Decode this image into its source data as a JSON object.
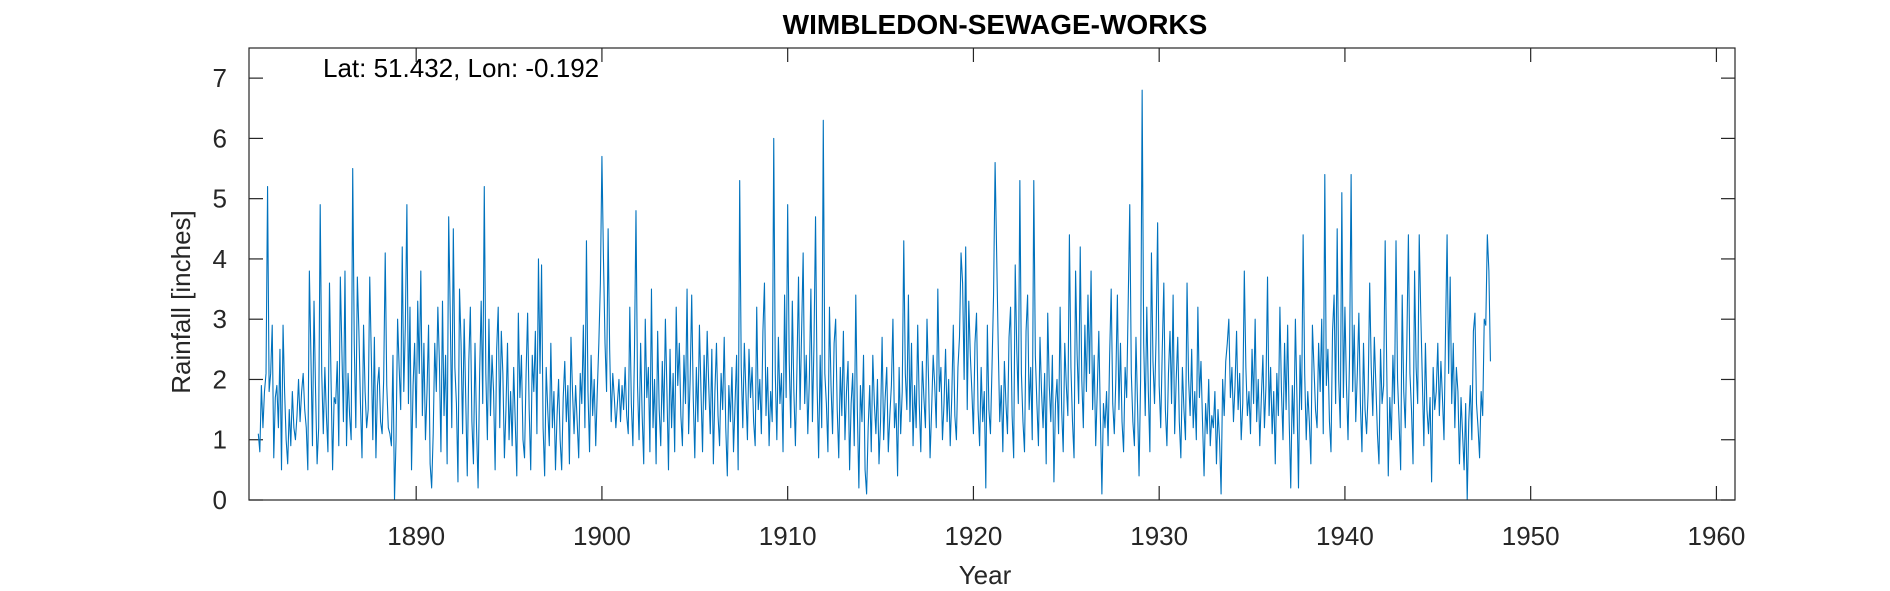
{
  "chart_data": {
    "type": "line",
    "title": "WIMBLEDON-SEWAGE-WORKS",
    "xlabel": "Year",
    "ylabel": "Rainfall [inches]",
    "annotation": "Lat: 51.432, Lon: -0.192",
    "xlim": [
      1881,
      1961
    ],
    "ylim": [
      0,
      7.5
    ],
    "xticks": [
      1890,
      1900,
      1910,
      1920,
      1930,
      1940,
      1950,
      1960
    ],
    "yticks": [
      0,
      1,
      2,
      3,
      4,
      5,
      6,
      7
    ],
    "grid": false,
    "line_color": "#0072BD",
    "series": [
      {
        "start_year": 1881.5,
        "step_years": 0.0833333,
        "values": [
          1.1,
          0.8,
          1.9,
          1.2,
          1.8,
          2.1,
          5.2,
          1.8,
          2.1,
          2.9,
          0.7,
          1.7,
          1.9,
          1.2,
          2.5,
          0.5,
          2.9,
          1.8,
          1.0,
          0.6,
          1.5,
          0.9,
          1.8,
          1.2,
          1.0,
          1.4,
          2.0,
          1.3,
          1.8,
          2.1,
          1.5,
          1.2,
          0.5,
          3.8,
          2.4,
          0.9,
          3.3,
          1.8,
          0.6,
          1.2,
          4.9,
          2.1,
          1.1,
          2.2,
          1.4,
          0.8,
          3.6,
          2.0,
          0.5,
          1.7,
          1.6,
          2.3,
          0.9,
          3.7,
          2.5,
          1.3,
          3.8,
          0.9,
          2.1,
          1.4,
          1.0,
          5.5,
          2.6,
          1.2,
          3.7,
          2.8,
          1.6,
          0.7,
          2.9,
          1.8,
          1.2,
          1.5,
          3.7,
          2.4,
          1.0,
          2.7,
          0.7,
          1.9,
          2.2,
          1.3,
          1.1,
          2.0,
          4.1,
          1.9,
          1.2,
          1.1,
          0.9,
          2.4,
          0.0,
          1.0,
          3.0,
          2.2,
          1.5,
          4.2,
          1.8,
          2.9,
          4.9,
          1.6,
          3.2,
          0.5,
          1.9,
          2.6,
          1.2,
          3.3,
          2.1,
          3.8,
          1.4,
          2.6,
          1.0,
          1.8,
          2.9,
          0.6,
          0.2,
          1.1,
          2.6,
          1.8,
          3.2,
          2.3,
          0.8,
          3.3,
          1.4,
          2.4,
          0.6,
          4.7,
          3.1,
          1.2,
          4.5,
          2.2,
          1.6,
          0.3,
          3.5,
          2.6,
          1.1,
          3.0,
          1.7,
          0.4,
          2.3,
          3.2,
          1.3,
          0.6,
          2.6,
          1.2,
          0.2,
          2.1,
          3.3,
          1.6,
          5.2,
          2.1,
          1.0,
          3.0,
          1.4,
          2.4,
          1.8,
          0.5,
          2.5,
          3.2,
          1.2,
          2.8,
          2.1,
          0.7,
          1.5,
          2.6,
          1.0,
          1.8,
          0.9,
          2.2,
          1.3,
          0.4,
          3.1,
          1.7,
          2.4,
          1.0,
          0.7,
          2.1,
          3.1,
          1.5,
          0.5,
          2.4,
          1.8,
          2.8,
          1.1,
          4.0,
          2.1,
          3.9,
          1.2,
          0.4,
          2.2,
          1.5,
          0.9,
          2.6,
          1.2,
          1.8,
          0.5,
          1.4,
          2.0,
          1.0,
          0.5,
          1.7,
          2.3,
          1.3,
          1.9,
          0.6,
          2.7,
          1.8,
          1.1,
          1.9,
          1.3,
          0.7,
          2.1,
          1.6,
          2.9,
          1.2,
          4.3,
          1.8,
          0.8,
          2.4,
          1.4,
          2.0,
          0.9,
          1.8,
          2.6,
          3.6,
          5.7,
          4.0,
          2.6,
          1.8,
          4.5,
          2.5,
          1.3,
          2.1,
          1.7,
          1.2,
          1.6,
          2.0,
          1.3,
          1.9,
          1.5,
          2.2,
          1.4,
          1.1,
          3.2,
          1.6,
          0.9,
          2.4,
          4.8,
          1.9,
          1.0,
          2.6,
          1.4,
          0.6,
          3.0,
          1.7,
          2.2,
          0.8,
          3.5,
          1.2,
          2.0,
          0.6,
          2.8,
          1.5,
          0.9,
          2.3,
          1.3,
          3.0,
          1.8,
          0.5,
          2.5,
          1.2,
          2.1,
          0.8,
          3.2,
          1.9,
          2.6,
          1.4,
          0.9,
          2.4,
          1.6,
          3.5,
          1.1,
          2.0,
          3.4,
          1.7,
          0.7,
          2.2,
          1.3,
          2.9,
          1.8,
          0.8,
          2.4,
          1.5,
          2.8,
          1.9,
          1.1,
          2.5,
          0.6,
          1.8,
          2.6,
          1.4,
          0.9,
          2.1,
          1.5,
          2.7,
          1.2,
          0.4,
          1.9,
          1.3,
          2.2,
          0.8,
          1.6,
          2.4,
          0.5,
          5.3,
          2.2,
          1.2,
          2.6,
          1.8,
          1.0,
          2.5,
          1.7,
          2.2,
          1.3,
          0.9,
          3.2,
          1.5,
          2.0,
          1.1,
          2.8,
          3.6,
          1.4,
          2.2,
          0.9,
          1.8,
          1.3,
          6.0,
          2.1,
          1.0,
          2.7,
          1.6,
          2.1,
          0.8,
          3.4,
          1.7,
          4.9,
          2.3,
          1.2,
          3.3,
          1.8,
          0.9,
          2.2,
          3.7,
          1.5,
          2.8,
          4.1,
          1.6,
          2.4,
          1.1,
          2.0,
          3.5,
          1.3,
          2.6,
          4.7,
          1.9,
          0.7,
          2.4,
          1.2,
          6.3,
          2.1,
          1.6,
          0.8,
          3.2,
          1.9,
          1.1,
          2.6,
          3.0,
          1.5,
          0.7,
          2.2,
          1.4,
          2.8,
          1.0,
          1.8,
          2.3,
          0.5,
          1.6,
          2.1,
          0.9,
          3.4,
          1.5,
          0.2,
          1.9,
          1.3,
          2.4,
          0.5,
          0.1,
          1.2,
          1.9,
          0.8,
          2.4,
          1.6,
          1.1,
          2.0,
          0.6,
          1.3,
          2.7,
          1.0,
          1.7,
          2.2,
          0.8,
          1.4,
          1.9,
          3.0,
          1.2,
          1.6,
          0.4,
          2.2,
          1.1,
          1.8,
          4.3,
          2.1,
          1.5,
          3.4,
          1.3,
          2.6,
          0.9,
          1.9,
          1.2,
          2.9,
          1.6,
          0.8,
          2.3,
          1.7,
          1.2,
          3.0,
          2.0,
          0.7,
          1.5,
          2.4,
          1.9,
          1.2,
          3.5,
          1.8,
          2.2,
          1.0,
          1.6,
          2.5,
          1.3,
          2.0,
          0.9,
          1.7,
          2.9,
          1.4,
          1.0,
          2.2,
          2.7,
          4.1,
          3.6,
          2.0,
          4.2,
          1.5,
          3.3,
          2.4,
          1.8,
          1.1,
          2.6,
          3.1,
          1.5,
          0.9,
          2.2,
          1.3,
          1.8,
          0.2,
          2.9,
          1.5,
          1.1,
          2.2,
          3.4,
          5.6,
          4.1,
          2.6,
          1.3,
          1.9,
          0.8,
          2.3,
          1.6,
          1.1,
          2.7,
          3.2,
          1.4,
          0.7,
          3.9,
          2.5,
          1.6,
          5.3,
          2.1,
          1.3,
          0.8,
          2.8,
          3.4,
          1.5,
          2.2,
          1.0,
          5.3,
          2.4,
          1.6,
          0.9,
          2.7,
          1.8,
          1.2,
          2.1,
          0.6,
          3.1,
          1.9,
          1.3,
          2.4,
          0.3,
          1.6,
          2.0,
          1.1,
          3.2,
          1.5,
          0.8,
          2.6,
          1.9,
          1.4,
          4.4,
          2.2,
          1.3,
          0.7,
          3.8,
          2.4,
          1.6,
          4.2,
          2.0,
          1.2,
          2.9,
          1.8,
          3.4,
          2.1,
          3.8,
          1.5,
          2.4,
          0.9,
          1.8,
          2.8,
          1.4,
          0.1,
          1.6,
          1.2,
          1.8,
          0.9,
          2.4,
          3.5,
          1.6,
          1.1,
          2.0,
          3.4,
          1.5,
          2.6,
          1.3,
          0.8,
          2.2,
          1.7,
          3.3,
          4.9,
          2.1,
          1.3,
          0.9,
          2.7,
          1.6,
          0.4,
          2.0,
          6.8,
          2.6,
          1.4,
          3.2,
          1.8,
          0.8,
          4.1,
          2.3,
          1.6,
          2.7,
          4.6,
          1.9,
          1.2,
          2.5,
          3.6,
          1.5,
          0.9,
          2.1,
          2.8,
          1.6,
          3.4,
          1.1,
          2.0,
          2.7,
          1.3,
          0.7,
          2.2,
          1.5,
          1.0,
          3.6,
          2.0,
          1.4,
          2.5,
          1.2,
          1.8,
          1.0,
          3.2,
          1.7,
          2.3,
          1.3,
          0.4,
          1.6,
          1.1,
          2.0,
          0.9,
          1.4,
          1.2,
          1.8,
          0.6,
          1.5,
          1.0,
          0.1,
          2.0,
          1.4,
          2.3,
          2.6,
          3.0,
          1.7,
          2.2,
          1.3,
          1.9,
          2.8,
          1.5,
          2.1,
          1.0,
          1.6,
          3.8,
          2.2,
          1.4,
          1.8,
          1.1,
          2.5,
          1.6,
          3.0,
          1.3,
          2.0,
          0.9,
          1.7,
          2.4,
          1.2,
          1.9,
          3.7,
          1.4,
          2.2,
          1.1,
          1.8,
          0.6,
          2.1,
          1.4,
          3.2,
          1.8,
          1.0,
          2.6,
          1.5,
          2.9,
          1.3,
          0.2,
          1.9,
          1.1,
          3.0,
          1.7,
          0.2,
          2.4,
          1.5,
          4.4,
          2.1,
          1.0,
          1.8,
          1.3,
          0.6,
          2.9,
          2.2,
          1.5,
          1.2,
          2.6,
          1.8,
          3.0,
          1.1,
          5.4,
          1.9,
          2.5,
          1.3,
          0.8,
          2.8,
          3.4,
          1.6,
          4.5,
          2.0,
          1.2,
          5.1,
          1.7,
          3.2,
          1.9,
          1.0,
          2.4,
          5.4,
          1.8,
          2.9,
          1.3,
          2.1,
          3.1,
          1.6,
          0.8,
          2.6,
          1.5,
          1.1,
          1.8,
          3.6,
          2.2,
          1.4,
          2.7,
          1.9,
          1.1,
          0.6,
          2.5,
          1.6,
          1.9,
          4.3,
          2.2,
          0.4,
          1.7,
          1.0,
          2.4,
          1.6,
          4.3,
          2.0,
          1.3,
          0.5,
          3.4,
          1.8,
          1.2,
          2.6,
          4.4,
          2.1,
          1.5,
          0.6,
          3.8,
          2.2,
          1.6,
          4.4,
          3.1,
          2.0,
          0.9,
          2.6,
          1.5,
          1.1,
          1.7,
          0.3,
          2.2,
          1.5,
          1.8,
          2.6,
          1.4,
          2.3,
          1.7,
          1.0,
          2.8,
          4.4,
          2.1,
          3.7,
          1.6,
          2.6,
          1.2,
          2.2,
          1.8,
          0.6,
          1.7,
          1.1,
          0.5,
          1.6,
          0.0,
          1.3,
          1.9,
          1.0,
          2.8,
          3.1,
          1.6,
          1.2,
          0.7,
          1.8,
          1.4,
          3.0,
          2.9,
          4.4,
          3.8,
          2.3
        ]
      }
    ]
  }
}
